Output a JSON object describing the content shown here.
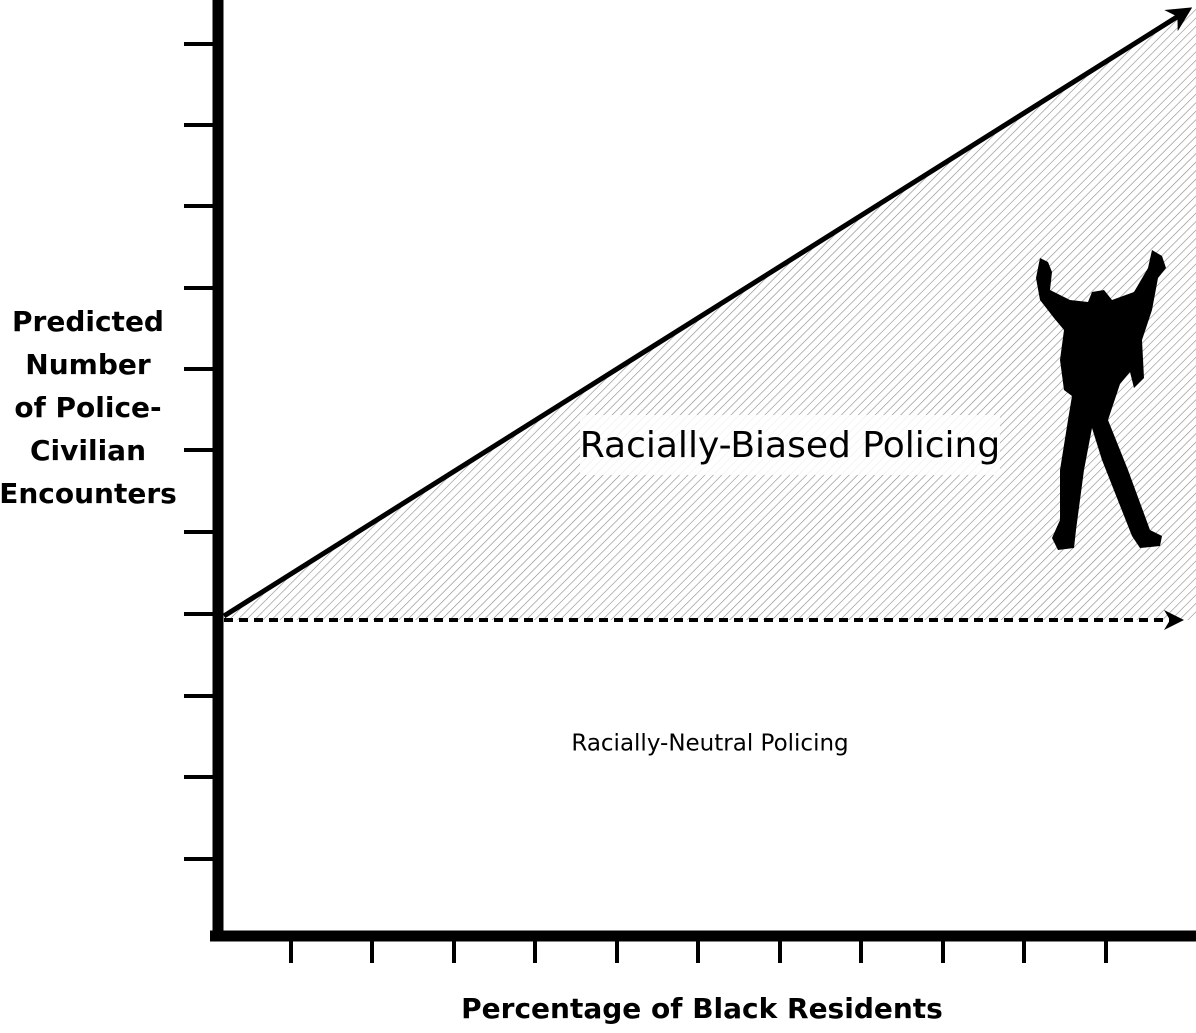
{
  "axes": {
    "y_label_lines": [
      "Predicted",
      "Number",
      "of Police-",
      "Civilian",
      "Encounters"
    ],
    "x_label": "Percentage of Black Residents"
  },
  "regions": {
    "upper": "Racially-Biased Policing",
    "lower": "Racially-Neutral Policing"
  }
}
